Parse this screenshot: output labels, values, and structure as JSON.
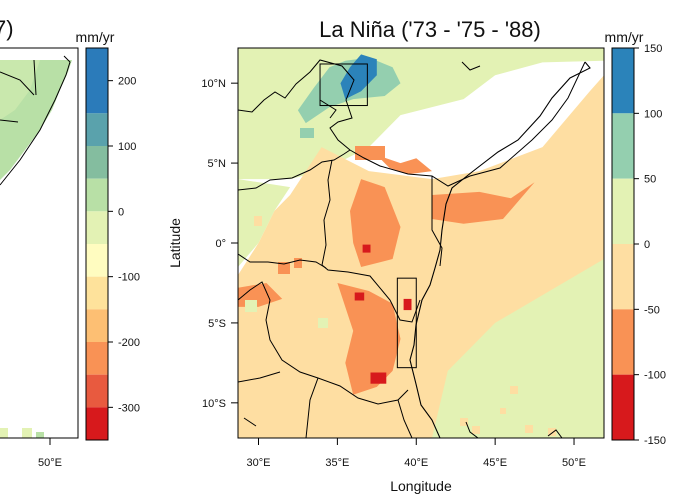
{
  "left_panel": {
    "title_fragment": "7)",
    "unit": "mm/yr",
    "x_tick": "50°E",
    "colorbar": {
      "ticks": [
        "200",
        "100",
        "0",
        "-100",
        "-200",
        "-300"
      ],
      "tick_values": [
        200,
        100,
        0,
        -100,
        -200,
        -300
      ],
      "range": [
        -350,
        250
      ],
      "bins": [
        {
          "from": 150,
          "to": 250,
          "color": "#2b7bba"
        },
        {
          "from": 100,
          "to": 150,
          "color": "#5aa2ac"
        },
        {
          "from": 50,
          "to": 100,
          "color": "#84bd9f"
        },
        {
          "from": 0,
          "to": 50,
          "color": "#b8e0a6"
        },
        {
          "from": -50,
          "to": 0,
          "color": "#e3f2b4"
        },
        {
          "from": -100,
          "to": -50,
          "color": "#fffcc0"
        },
        {
          "from": -150,
          "to": -100,
          "color": "#fee29b"
        },
        {
          "from": -200,
          "to": -150,
          "color": "#fdbf73"
        },
        {
          "from": -250,
          "to": -200,
          "color": "#f99255"
        },
        {
          "from": -300,
          "to": -250,
          "color": "#e85a3f"
        },
        {
          "from": -350,
          "to": -300,
          "color": "#d7191c"
        }
      ]
    }
  },
  "main_panel": {
    "title": "La Niña ('73 - '75 - '88)",
    "unit": "mm/yr",
    "xlabel": "Longitude",
    "ylabel": "Latitude",
    "x_ticks": [
      "30°E",
      "35°E",
      "40°E",
      "45°E",
      "50°E"
    ],
    "x_tick_values": [
      30,
      35,
      40,
      45,
      50
    ],
    "y_ticks": [
      "10°N",
      "5°N",
      "0°",
      "5°S",
      "10°S"
    ],
    "y_tick_values": [
      10,
      5,
      0,
      -5,
      -10
    ],
    "xlim": [
      28.7,
      51.9
    ],
    "ylim": [
      -12.2,
      12.2
    ],
    "colorbar": {
      "ticks": [
        "150",
        "100",
        "50",
        "0",
        "-50",
        "-100",
        "-150"
      ],
      "tick_values": [
        150,
        100,
        50,
        0,
        -50,
        -100,
        -150
      ],
      "range": [
        -150,
        150
      ],
      "bins": [
        {
          "from": 100,
          "to": 150,
          "color": "#2b83ba"
        },
        {
          "from": 50,
          "to": 100,
          "color": "#94cfaf"
        },
        {
          "from": 0,
          "to": 50,
          "color": "#e3f2b4"
        },
        {
          "from": -50,
          "to": 0,
          "color": "#fedea2"
        },
        {
          "from": -100,
          "to": -50,
          "color": "#f99255"
        },
        {
          "from": -150,
          "to": -100,
          "color": "#d7191c"
        }
      ]
    }
  },
  "chart_data": {
    "type": "heatmap",
    "title": "La Niña ('73 - '75 - '88)",
    "xlabel": "Longitude",
    "ylabel": "Latitude",
    "units": "mm/yr",
    "xlim": [
      28.7,
      51.9
    ],
    "ylim": [
      -12.2,
      12.2
    ],
    "legend": "right colorbar",
    "regions": [
      {
        "value": 25,
        "polygon": [
          [
            28.7,
            12.2
          ],
          [
            51.9,
            12.2
          ],
          [
            51.9,
            11.4
          ],
          [
            48,
            11.3
          ],
          [
            45,
            10.5
          ],
          [
            43,
            9
          ],
          [
            39,
            8
          ],
          [
            37,
            6
          ],
          [
            34,
            4.5
          ],
          [
            32,
            4
          ],
          [
            28.7,
            4
          ]
        ]
      },
      {
        "value": -25,
        "polygon": [
          [
            34,
            6
          ],
          [
            37,
            4.5
          ],
          [
            41,
            4
          ],
          [
            44,
            4.5
          ],
          [
            48,
            6
          ],
          [
            51,
            9.5
          ],
          [
            51.9,
            10.5
          ],
          [
            51.9,
            -12.2
          ],
          [
            28.7,
            -12.2
          ],
          [
            28.7,
            -2
          ],
          [
            30,
            0
          ],
          [
            31,
            2
          ],
          [
            32,
            3
          ],
          [
            33,
            4.5
          ]
        ]
      },
      {
        "value": 25,
        "polygon": [
          [
            28.7,
            4
          ],
          [
            32,
            3.5
          ],
          [
            31,
            2
          ],
          [
            30,
            0
          ],
          [
            28.7,
            -1.5
          ]
        ]
      },
      {
        "value": 25,
        "polygon": [
          [
            51.9,
            -1
          ],
          [
            45,
            -5
          ],
          [
            42,
            -8
          ],
          [
            41,
            -12.2
          ],
          [
            51.9,
            -12.2
          ]
        ]
      },
      {
        "value": -75,
        "polygon": [
          [
            36.5,
            4
          ],
          [
            38,
            3.5
          ],
          [
            39,
            1
          ],
          [
            38.5,
            -1
          ],
          [
            36.5,
            -1.5
          ],
          [
            36,
            0
          ],
          [
            35.8,
            2
          ]
        ]
      },
      {
        "value": -75,
        "polygon": [
          [
            41,
            3
          ],
          [
            44,
            3.2
          ],
          [
            46,
            2.8
          ],
          [
            47.5,
            3.8
          ],
          [
            45.5,
            1.5
          ],
          [
            43,
            1.2
          ],
          [
            41,
            1.5
          ]
        ]
      },
      {
        "value": -75,
        "polygon": [
          [
            35,
            -2.5
          ],
          [
            37,
            -3
          ],
          [
            38.5,
            -3.8
          ],
          [
            39,
            -6
          ],
          [
            38.5,
            -8
          ],
          [
            37.5,
            -9
          ],
          [
            36,
            -9.5
          ],
          [
            35.5,
            -7.5
          ],
          [
            36,
            -5.5
          ]
        ]
      },
      {
        "value": -75,
        "polygon": [
          [
            37.5,
            5.5
          ],
          [
            39,
            5
          ],
          [
            40,
            5.3
          ],
          [
            41,
            4.5
          ],
          [
            39.5,
            4.3
          ],
          [
            38.3,
            4.7
          ]
        ]
      },
      {
        "value": -75,
        "polygon": [
          [
            28.7,
            -2.8
          ],
          [
            30.5,
            -2.5
          ],
          [
            31.5,
            -3.5
          ],
          [
            30,
            -4
          ],
          [
            28.7,
            -4
          ]
        ]
      },
      {
        "value": 75,
        "polygon": [
          [
            33.5,
            9.7
          ],
          [
            34.5,
            11
          ],
          [
            35.5,
            11.4
          ],
          [
            37,
            11.6
          ],
          [
            38.5,
            11
          ],
          [
            39,
            10
          ],
          [
            38,
            9.2
          ],
          [
            36,
            9
          ],
          [
            34.5,
            8.5
          ],
          [
            33,
            7.5
          ],
          [
            32.5,
            8.3
          ]
        ]
      },
      {
        "value": 125,
        "polygon": [
          [
            35.5,
            9
          ],
          [
            36.5,
            9.5
          ],
          [
            37.5,
            10.5
          ],
          [
            37.5,
            11.5
          ],
          [
            36.5,
            11.8
          ],
          [
            35.8,
            11
          ],
          [
            35.2,
            10
          ]
        ]
      },
      {
        "value": -125,
        "polygon": [
          [
            37.1,
            -8.1
          ],
          [
            38.1,
            -8.1
          ],
          [
            38.1,
            -8.8
          ],
          [
            37.1,
            -8.8
          ]
        ]
      },
      {
        "value": -125,
        "polygon": [
          [
            36.6,
            -0.1
          ],
          [
            37.1,
            -0.1
          ],
          [
            37.1,
            -0.6
          ],
          [
            36.6,
            -0.6
          ]
        ]
      },
      {
        "value": -125,
        "polygon": [
          [
            39.2,
            -3.5
          ],
          [
            39.7,
            -3.5
          ],
          [
            39.7,
            -4.2
          ],
          [
            39.2,
            -4.2
          ]
        ]
      },
      {
        "value": -125,
        "polygon": [
          [
            36.1,
            -3.1
          ],
          [
            36.7,
            -3.1
          ],
          [
            36.7,
            -3.6
          ],
          [
            36.1,
            -3.6
          ]
        ]
      }
    ],
    "boxes": [
      {
        "x": [
          33.9,
          36.9
        ],
        "y": [
          8.6,
          11.2
        ]
      },
      {
        "x": [
          38.8,
          40.0
        ],
        "y": [
          -7.8,
          -2.2
        ]
      }
    ]
  }
}
